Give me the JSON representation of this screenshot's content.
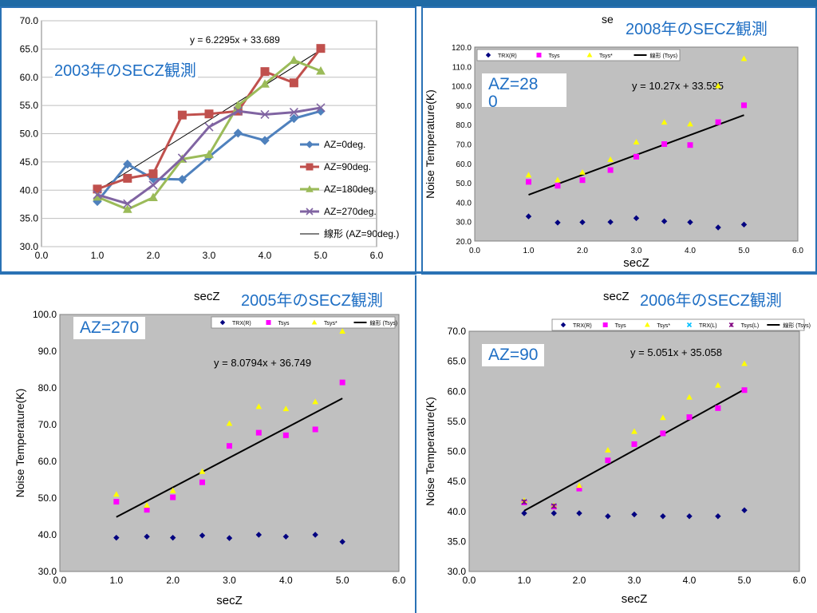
{
  "panels": {
    "p2003": {
      "title": "2003年のSECZ観測"
    },
    "p2008": {
      "title": "2008年のSECZ観測",
      "az": "AZ=28\n0",
      "secz_top": "se"
    },
    "p2005": {
      "title": "2005年のSECZ観測",
      "az": "AZ=270",
      "secz_top": "secZ"
    },
    "p2006": {
      "title": "2006年のSECZ観測",
      "az": "AZ=90",
      "secz_top": "secZ"
    }
  },
  "colors": {
    "accent": "#1f6fc4",
    "border": "#2a72b5",
    "plot_bg": "#c0c0c0"
  },
  "chart_data": [
    {
      "id": "c2003",
      "type": "line",
      "title": "",
      "xlabel": "",
      "ylabel": "",
      "xlim": [
        0.0,
        6.0
      ],
      "ylim": [
        30.0,
        70.0
      ],
      "xticks": [
        "0.0",
        "1.0",
        "2.0",
        "3.0",
        "4.0",
        "5.0",
        "6.0"
      ],
      "yticks": [
        "30.0",
        "35.0",
        "40.0",
        "45.0",
        "50.0",
        "55.0",
        "60.0",
        "65.0",
        "70.0"
      ],
      "x": [
        1.0,
        1.54,
        2.0,
        2.52,
        3.0,
        3.52,
        4.0,
        4.52,
        5.0
      ],
      "series": [
        {
          "name": "AZ=0deg.",
          "color": "#4f81bd",
          "marker": "diamond",
          "values": [
            38.0,
            44.6,
            42.0,
            41.9,
            45.9,
            50.1,
            48.8,
            52.7,
            54.0
          ]
        },
        {
          "name": "AZ=90deg.",
          "color": "#c0504d",
          "marker": "square",
          "values": [
            40.2,
            42.1,
            42.9,
            53.3,
            53.5,
            54.0,
            61.0,
            59.0,
            65.1
          ]
        },
        {
          "name": "AZ=180deg.",
          "color": "#9bbb59",
          "marker": "triangle",
          "values": [
            38.8,
            36.6,
            38.7,
            45.5,
            46.3,
            55.0,
            58.8,
            63.0,
            61.1
          ]
        },
        {
          "name": "AZ=270deg.",
          "color": "#8064a2",
          "marker": "x",
          "values": [
            39.2,
            37.6,
            40.9,
            45.7,
            51.2,
            54.0,
            53.4,
            53.8,
            54.6
          ]
        }
      ],
      "trend": {
        "name": "線形 (AZ=90deg.)",
        "color": "#000000",
        "slope": 6.2295,
        "intercept": 33.689,
        "x_range": [
          1.0,
          5.0
        ],
        "equation": "y = 6.2295x + 33.689"
      },
      "grid": true,
      "legend": "right"
    },
    {
      "id": "c2008",
      "type": "scatter",
      "title": "",
      "xlabel": "secZ",
      "ylabel": "Noise Temperature(K)",
      "xlim": [
        0.0,
        6.0
      ],
      "ylim": [
        20.0,
        120.0
      ],
      "xticks": [
        "0.0",
        "1.0",
        "2.0",
        "3.0",
        "4.0",
        "5.0",
        "6.0"
      ],
      "yticks": [
        "20.0",
        "30.0",
        "40.0",
        "50.0",
        "60.0",
        "70.0",
        "80.0",
        "90.0",
        "100.0",
        "110.0",
        "120.0"
      ],
      "x": [
        1.0,
        1.54,
        2.0,
        2.52,
        3.0,
        3.52,
        4.0,
        4.52,
        5.0
      ],
      "series": [
        {
          "name": "TRX(R)",
          "color": "#000080",
          "marker": "diamond",
          "values": [
            32.7,
            29.5,
            29.7,
            29.8,
            31.8,
            30.2,
            29.7,
            27.0,
            28.5
          ]
        },
        {
          "name": "Tsys",
          "color": "#ff00ff",
          "marker": "square",
          "values": [
            50.5,
            48.5,
            51.4,
            56.6,
            63.5,
            70.0,
            69.5,
            81.3,
            90.0
          ]
        },
        {
          "name": "Tsys*",
          "color": "#ffff00",
          "marker": "triangle",
          "values": [
            54.0,
            51.5,
            55.4,
            62.0,
            71.0,
            81.2,
            80.3,
            100.0,
            114.0
          ]
        }
      ],
      "trend": {
        "name": "線形 (Tsys)",
        "color": "#000000",
        "slope": 10.27,
        "intercept": 33.595,
        "x_range": [
          1.0,
          5.0
        ],
        "equation": "y = 10.27x + 33.595"
      },
      "grid": false,
      "legend": "top"
    },
    {
      "id": "c2005",
      "type": "scatter",
      "title": "",
      "xlabel": "secZ",
      "ylabel": "Noise Temperature(K)",
      "xlim": [
        0.0,
        6.0
      ],
      "ylim": [
        30.0,
        100.0
      ],
      "xticks": [
        "0.0",
        "1.0",
        "2.0",
        "3.0",
        "4.0",
        "5.0",
        "6.0"
      ],
      "yticks": [
        "30.0",
        "40.0",
        "50.0",
        "60.0",
        "70.0",
        "80.0",
        "90.0",
        "100.0"
      ],
      "x": [
        1.0,
        1.54,
        2.0,
        2.52,
        3.0,
        3.52,
        4.0,
        4.52,
        5.0
      ],
      "series": [
        {
          "name": "TRX(R)",
          "color": "#000080",
          "marker": "diamond",
          "values": [
            39.2,
            39.5,
            39.2,
            39.8,
            39.1,
            40.0,
            39.5,
            40.0,
            38.1
          ]
        },
        {
          "name": "Tsys",
          "color": "#ff00ff",
          "marker": "square",
          "values": [
            49.0,
            46.8,
            50.2,
            54.3,
            64.2,
            67.8,
            67.1,
            68.7,
            81.5
          ]
        },
        {
          "name": "Tsys*",
          "color": "#ffff00",
          "marker": "triangle",
          "values": [
            51.0,
            48.0,
            52.0,
            57.2,
            70.3,
            74.9,
            74.3,
            76.2,
            95.4
          ]
        }
      ],
      "trend": {
        "name": "線形 (Tsys)",
        "color": "#000000",
        "slope": 8.0794,
        "intercept": 36.749,
        "x_range": [
          1.0,
          5.0
        ],
        "equation": "y = 8.0794x + 36.749"
      },
      "grid": false,
      "legend": "top"
    },
    {
      "id": "c2006",
      "type": "scatter",
      "title": "",
      "xlabel": "secZ",
      "ylabel": "Noise Temperature(K)",
      "xlim": [
        0.0,
        6.0
      ],
      "ylim": [
        30.0,
        70.0
      ],
      "xticks": [
        "0.0",
        "1.0",
        "2.0",
        "3.0",
        "4.0",
        "5.0",
        "6.0"
      ],
      "yticks": [
        "30.0",
        "35.0",
        "40.0",
        "45.0",
        "50.0",
        "55.0",
        "60.0",
        "65.0",
        "70.0"
      ],
      "x": [
        1.0,
        1.54,
        2.0,
        2.52,
        3.0,
        3.52,
        4.0,
        4.52,
        5.0
      ],
      "series": [
        {
          "name": "TRX(R)",
          "color": "#000080",
          "marker": "diamond",
          "values": [
            39.7,
            39.7,
            39.7,
            39.2,
            39.5,
            39.2,
            39.2,
            39.2,
            40.2
          ]
        },
        {
          "name": "Tsys",
          "color": "#ff00ff",
          "marker": "square",
          "values": [
            41.5,
            40.8,
            43.8,
            48.5,
            51.2,
            53.0,
            55.7,
            57.2,
            60.2
          ]
        },
        {
          "name": "Tsys*",
          "color": "#ffff00",
          "marker": "triangle",
          "values": [
            41.8,
            41.0,
            44.3,
            50.2,
            53.3,
            55.6,
            59.0,
            61.0,
            64.6
          ]
        },
        {
          "name": "TRX(L)",
          "color": "#00bfff",
          "marker": "x",
          "values": [
            41.6,
            40.9,
            null,
            null,
            null,
            null,
            null,
            null,
            null
          ]
        },
        {
          "name": "Tsys(L)",
          "color": "#800080",
          "marker": "star",
          "values": [
            41.6,
            40.9,
            null,
            null,
            null,
            null,
            null,
            null,
            null
          ]
        }
      ],
      "trend": {
        "name": "線形 (Tsys)",
        "color": "#000000",
        "slope": 5.051,
        "intercept": 35.058,
        "x_range": [
          1.0,
          5.0
        ],
        "equation": "y = 5.051x + 35.058"
      },
      "grid": false,
      "legend": "top"
    }
  ]
}
